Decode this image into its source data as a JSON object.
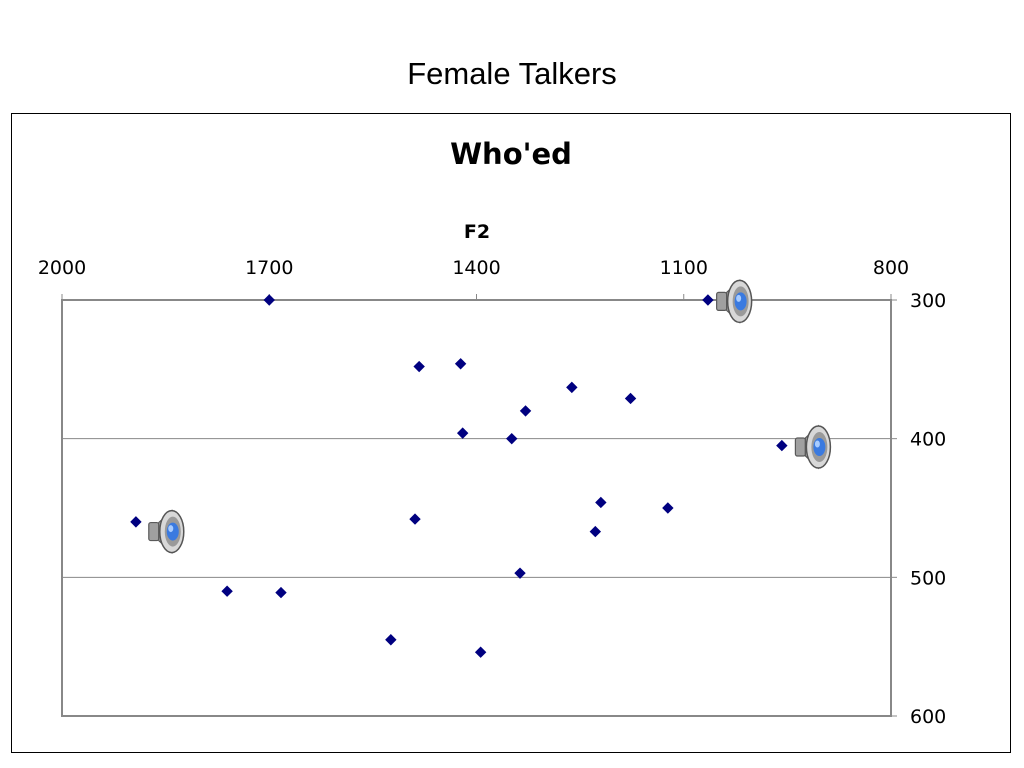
{
  "slide": {
    "title": "Female Talkers"
  },
  "chart_data": {
    "type": "scatter",
    "title": "Who'ed",
    "xlabel": "F2",
    "ylabel": "",
    "x_axis_position": "top",
    "y_axis_position": "right",
    "x_reversed": true,
    "y_reversed": true,
    "xlim": [
      800,
      2000
    ],
    "ylim": [
      300,
      600
    ],
    "x_ticks": [
      2000,
      1700,
      1400,
      1100,
      800
    ],
    "y_ticks": [
      300,
      400,
      500,
      600
    ],
    "grid": "horizontal",
    "marker": "diamond",
    "marker_color": "#000080",
    "points": [
      {
        "x": 1700,
        "y": 300
      },
      {
        "x": 1065,
        "y": 300
      },
      {
        "x": 1483,
        "y": 348
      },
      {
        "x": 1423,
        "y": 346
      },
      {
        "x": 1262,
        "y": 363
      },
      {
        "x": 1177,
        "y": 371
      },
      {
        "x": 1329,
        "y": 380
      },
      {
        "x": 1420,
        "y": 396
      },
      {
        "x": 1349,
        "y": 400
      },
      {
        "x": 958,
        "y": 405
      },
      {
        "x": 1220,
        "y": 446
      },
      {
        "x": 1123,
        "y": 450
      },
      {
        "x": 1893,
        "y": 460
      },
      {
        "x": 1489,
        "y": 458
      },
      {
        "x": 1228,
        "y": 467
      },
      {
        "x": 1337,
        "y": 497
      },
      {
        "x": 1761,
        "y": 510
      },
      {
        "x": 1683,
        "y": 511
      },
      {
        "x": 1524,
        "y": 545
      },
      {
        "x": 1394,
        "y": 554
      }
    ],
    "audio_icons": [
      {
        "x": 1022,
        "y": 301
      },
      {
        "x": 908,
        "y": 406
      },
      {
        "x": 1844,
        "y": 467
      }
    ]
  }
}
